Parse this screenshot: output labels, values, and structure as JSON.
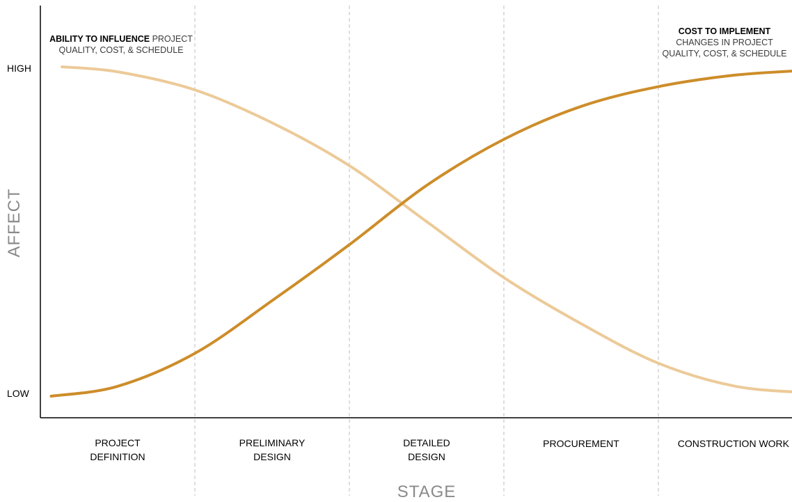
{
  "chart_data": {
    "type": "line",
    "xlabel": "STAGE",
    "ylabel": "AFFECT",
    "y_ticks": [
      "HIGH",
      "LOW"
    ],
    "categories": [
      [
        "PROJECT",
        "DEFINITION"
      ],
      [
        "PRELIMINARY",
        "DESIGN"
      ],
      [
        "DETAILED",
        "DESIGN"
      ],
      [
        "PROCUREMENT"
      ],
      [
        "CONSTRUCTION WORK"
      ]
    ],
    "series": [
      {
        "name": "ABILITY TO INFLUENCE PROJECT QUALITY, COST, & SCHEDULE",
        "color": "#ecca98",
        "values": [
          [
            0.14,
            1.0
          ],
          [
            0.5,
            0.985
          ],
          [
            1.0,
            0.93
          ],
          [
            1.5,
            0.83
          ],
          [
            2.0,
            0.7
          ],
          [
            2.5,
            0.53
          ],
          [
            3.0,
            0.36
          ],
          [
            3.5,
            0.22
          ],
          [
            4.0,
            0.1
          ],
          [
            4.5,
            0.03
          ],
          [
            4.98,
            0.01
          ]
        ]
      },
      {
        "name": "COST TO IMPLEMENT CHANGES IN PROJECT QUALITY, COST, & SCHEDULE",
        "color": "#cd8d2a",
        "values": [
          [
            0.07,
            0.0
          ],
          [
            0.5,
            0.03
          ],
          [
            1.0,
            0.13
          ],
          [
            1.5,
            0.29
          ],
          [
            2.0,
            0.46
          ],
          [
            2.5,
            0.64
          ],
          [
            3.0,
            0.78
          ],
          [
            3.5,
            0.88
          ],
          [
            4.0,
            0.94
          ],
          [
            4.5,
            0.975
          ],
          [
            4.98,
            0.99
          ]
        ]
      }
    ],
    "annotations": [
      {
        "series": 0,
        "lines": [
          [
            {
              "text": "ABILITY TO INFLUENCE",
              "weight": "bold"
            },
            {
              "text": " PROJECT",
              "weight": "normal"
            }
          ],
          [
            {
              "text": "QUALITY, COST, & SCHEDULE",
              "weight": "normal"
            }
          ]
        ]
      },
      {
        "series": 1,
        "lines": [
          [
            {
              "text": "COST TO IMPLEMENT",
              "weight": "bold"
            }
          ],
          [
            {
              "text": "CHANGES IN PROJECT",
              "weight": "normal"
            }
          ],
          [
            {
              "text": "QUALITY, COST, & SCHEDULE",
              "weight": "normal"
            }
          ]
        ]
      }
    ],
    "xlim": [
      0,
      5
    ],
    "ylim": [
      0,
      1
    ],
    "grid": "vertical dashed at stage boundaries",
    "legend": "none"
  }
}
